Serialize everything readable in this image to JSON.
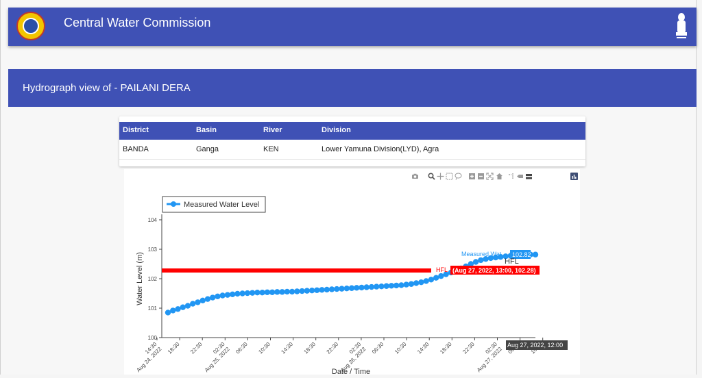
{
  "header": {
    "title": "Central Water Commission"
  },
  "banner": {
    "title": "Hydrograph view of - PAILANI DERA"
  },
  "info_table": {
    "columns": [
      "District",
      "Basin",
      "River",
      "Division"
    ],
    "row": [
      "BANDA",
      "Ganga",
      "KEN",
      "Lower Yamuna Division(LYD), Agra"
    ]
  },
  "modebar": [
    "camera-icon",
    "zoom-icon",
    "pan-icon",
    "box-select-icon",
    "lasso-select-icon",
    "zoom-in-icon",
    "zoom-out-icon",
    "autoscale-icon",
    "reset-axes-icon",
    "spike-lines-icon",
    "hover-closest-icon",
    "hover-compare-icon",
    "plotly-logo-icon"
  ],
  "chart_data": {
    "type": "line",
    "ylabel": "Water Level (m)",
    "xlabel": "Date / Time",
    "ylim": [
      100,
      104
    ],
    "yticks": [
      100,
      101,
      102,
      103,
      104
    ],
    "xticks": [
      {
        "label": "14:30",
        "sub": "Aug 24, 2022"
      },
      {
        "label": "18:30",
        "sub": ""
      },
      {
        "label": "22:30",
        "sub": ""
      },
      {
        "label": "02:30",
        "sub": "Aug 25, 2022"
      },
      {
        "label": "06:30",
        "sub": ""
      },
      {
        "label": "10:30",
        "sub": ""
      },
      {
        "label": "14:30",
        "sub": ""
      },
      {
        "label": "18:30",
        "sub": ""
      },
      {
        "label": "22:30",
        "sub": ""
      },
      {
        "label": "02:30",
        "sub": "Aug 26, 2022"
      },
      {
        "label": "06:30",
        "sub": ""
      },
      {
        "label": "10:30",
        "sub": ""
      },
      {
        "label": "14:30",
        "sub": ""
      },
      {
        "label": "18:30",
        "sub": ""
      },
      {
        "label": "22:30",
        "sub": ""
      },
      {
        "label": "02:30",
        "sub": "Aug 27, 2022"
      },
      {
        "label": "06:30",
        "sub": ""
      },
      {
        "label": "10:30",
        "sub": ""
      }
    ],
    "legend": {
      "entries": [
        "Measured Water Level"
      ],
      "position": "top-left"
    },
    "series": [
      {
        "name": "Measured Water Level",
        "color": "#2196f3",
        "values": [
          100.85,
          100.92,
          100.97,
          101.03,
          101.08,
          101.15,
          101.2,
          101.26,
          101.31,
          101.36,
          101.4,
          101.43,
          101.45,
          101.47,
          101.49,
          101.5,
          101.51,
          101.52,
          101.53,
          101.53,
          101.54,
          101.54,
          101.55,
          101.55,
          101.56,
          101.56,
          101.57,
          101.58,
          101.59,
          101.6,
          101.61,
          101.62,
          101.63,
          101.64,
          101.65,
          101.66,
          101.67,
          101.68,
          101.69,
          101.7,
          101.71,
          101.72,
          101.73,
          101.74,
          101.75,
          101.76,
          101.77,
          101.78,
          101.8,
          101.82,
          101.85,
          101.88,
          101.92,
          101.97,
          102.03,
          102.09,
          102.15,
          102.21,
          102.28,
          102.35,
          102.42,
          102.5,
          102.57,
          102.63,
          102.67,
          102.7,
          102.72,
          102.74,
          102.76,
          102.78,
          102.79,
          102.8,
          102.81,
          102.82,
          102.82
        ]
      }
    ],
    "hfl": {
      "name": "HFL",
      "value": 102.28,
      "color": "#ff0000",
      "label": "HFL"
    },
    "hover": {
      "measured_name": "Measured Wat...",
      "measured_value": "102.82",
      "hfl_text": "(Aug 27, 2022, 13:00, 102.28)",
      "hfl_name": "HFL",
      "hfl_overlay": "HFL",
      "x_label": "Aug 27, 2022, 12:00"
    }
  }
}
